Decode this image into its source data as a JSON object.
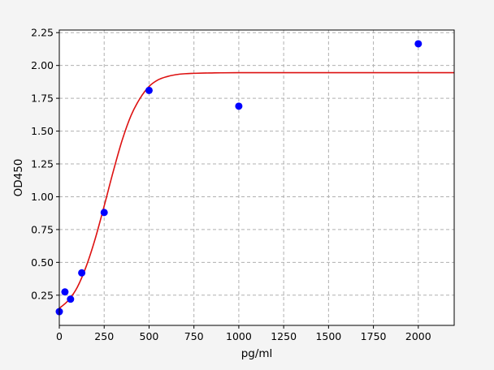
{
  "chart_data": {
    "type": "scatter",
    "xlabel": "pg/ml",
    "ylabel": "OD450",
    "xlim": [
      0,
      2200
    ],
    "ylim": [
      0.02,
      2.27
    ],
    "xticks": [
      0,
      250,
      500,
      750,
      1000,
      1250,
      1500,
      1750,
      2000
    ],
    "yticks": [
      0.25,
      0.5,
      0.75,
      1.0,
      1.25,
      1.5,
      1.75,
      2.0,
      2.25
    ],
    "xtick_labels": [
      "0",
      "250",
      "500",
      "750",
      "1000",
      "1250",
      "1500",
      "1750",
      "2000"
    ],
    "ytick_labels": [
      "0.25",
      "0.50",
      "0.75",
      "1.00",
      "1.25",
      "1.50",
      "1.75",
      "2.00",
      "2.25"
    ],
    "grid": true,
    "series": [
      {
        "kind": "points",
        "x": [
          0,
          31.25,
          62.5,
          125,
          250,
          500,
          1000,
          2000
        ],
        "y": [
          0.125,
          0.275,
          0.22,
          0.42,
          0.88,
          1.81,
          1.69,
          2.165
        ]
      },
      {
        "kind": "fit-curve",
        "x": [
          0,
          50,
          100,
          150,
          200,
          250,
          300,
          350,
          400,
          450,
          500,
          550,
          600,
          650,
          700,
          750,
          800,
          850,
          900,
          1000,
          1200,
          1500,
          2000,
          2200
        ],
        "y": [
          0.15,
          0.21,
          0.31,
          0.47,
          0.68,
          0.93,
          1.19,
          1.43,
          1.62,
          1.75,
          1.84,
          1.89,
          1.915,
          1.93,
          1.937,
          1.94,
          1.942,
          1.943,
          1.944,
          1.945,
          1.945,
          1.945,
          1.945,
          1.945
        ]
      }
    ],
    "colors": {
      "points": "#0000ff",
      "curve": "#dd1111",
      "grid": "#b0b0b0",
      "background": "#f4f4f4",
      "plot_background": "#ffffff"
    }
  }
}
